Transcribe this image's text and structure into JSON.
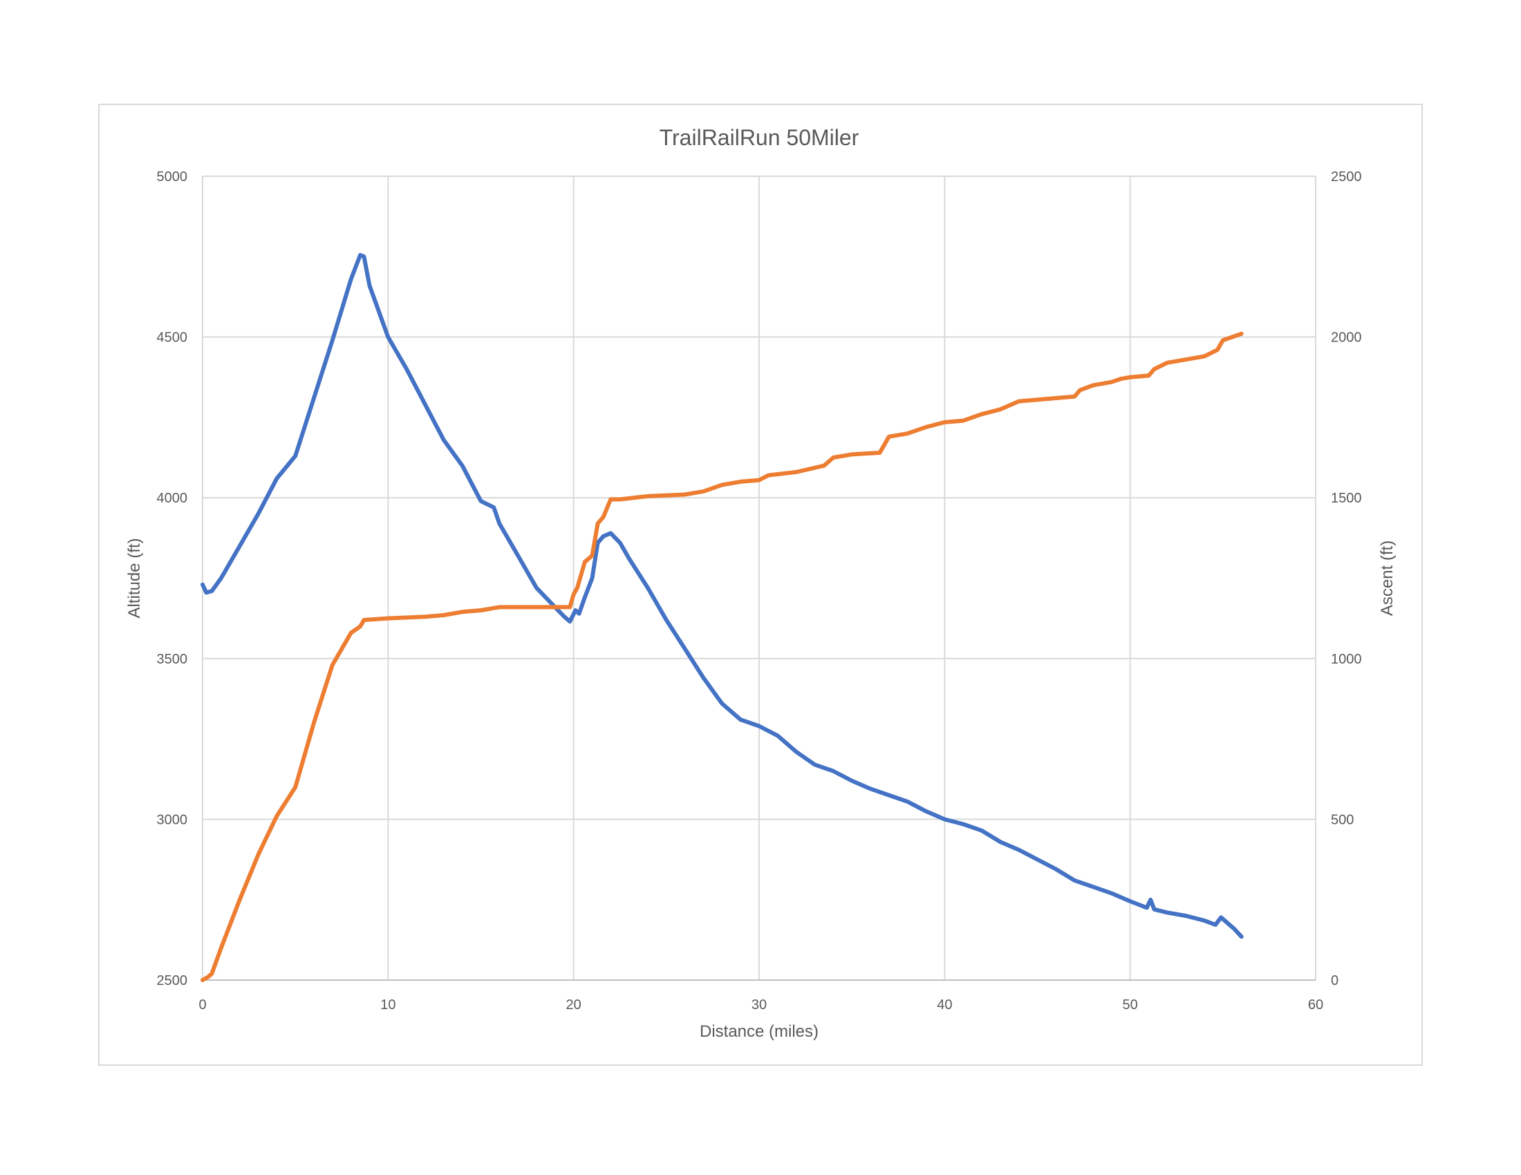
{
  "chart_data": {
    "type": "line",
    "title": "TrailRailRun 50Miler",
    "xlabel": "Distance (miles)",
    "ylabel": "Altitude (ft)",
    "y2label": "Ascent (ft)",
    "xlim": [
      0,
      60
    ],
    "ylim": [
      2500,
      5000
    ],
    "y2lim": [
      0,
      2500
    ],
    "x_ticks": [
      "0",
      "10",
      "20",
      "30",
      "40",
      "50",
      "60"
    ],
    "y_ticks": [
      "2500",
      "3000",
      "3500",
      "4000",
      "4500",
      "5000"
    ],
    "y2_ticks": [
      "0",
      "500",
      "1000",
      "1500",
      "2000",
      "2500"
    ],
    "grid": true,
    "legend": "none",
    "series": [
      {
        "axis": "left",
        "color": "#4472c4",
        "x": [
          0,
          0.2,
          0.5,
          1,
          2,
          3,
          4,
          5,
          6,
          7,
          8,
          8.5,
          8.7,
          9,
          10,
          11,
          12,
          13,
          14,
          15,
          15.7,
          16,
          17,
          18,
          19,
          19.5,
          19.8,
          20.1,
          20.3,
          20.6,
          21,
          21.3,
          21.6,
          22,
          22.5,
          23,
          24,
          25,
          26,
          27,
          28,
          29,
          30,
          31,
          32,
          33,
          34,
          35,
          36,
          37,
          38,
          39,
          40,
          41,
          42,
          43,
          44,
          45,
          46,
          47,
          48,
          49,
          50,
          50.9,
          51.1,
          51.3,
          52,
          53,
          54,
          54.6,
          54.9,
          55.2,
          55.6,
          56
        ],
        "y": [
          3730,
          3705,
          3710,
          3750,
          3850,
          3950,
          4060,
          4130,
          4310,
          4490,
          4680,
          4755,
          4750,
          4660,
          4500,
          4400,
          4290,
          4180,
          4100,
          3990,
          3970,
          3920,
          3820,
          3720,
          3660,
          3630,
          3615,
          3650,
          3640,
          3690,
          3750,
          3860,
          3880,
          3890,
          3860,
          3810,
          3720,
          3620,
          3530,
          3440,
          3360,
          3310,
          3290,
          3260,
          3210,
          3170,
          3150,
          3120,
          3095,
          3075,
          3055,
          3025,
          3000,
          2985,
          2965,
          2930,
          2905,
          2875,
          2845,
          2810,
          2790,
          2770,
          2745,
          2725,
          2750,
          2720,
          2710,
          2700,
          2685,
          2672,
          2695,
          2680,
          2660,
          2635
        ]
      },
      {
        "axis": "right",
        "color": "#ed7d31",
        "x": [
          0,
          0.3,
          0.5,
          1,
          2,
          3,
          4,
          5,
          6,
          7,
          8,
          8.5,
          8.7,
          10,
          12,
          13,
          14,
          15,
          16,
          18,
          19.8,
          20,
          20.2,
          20.6,
          21,
          21.3,
          21.6,
          22,
          22.5,
          24,
          26,
          27,
          28,
          29,
          30,
          30.5,
          32,
          33.5,
          34,
          35,
          36.5,
          37,
          38,
          39,
          40,
          41,
          42,
          43,
          44,
          46,
          47,
          47.3,
          48,
          49,
          49.5,
          50,
          51,
          51.3,
          52,
          53,
          54,
          54.7,
          55,
          56
        ],
        "y": [
          0,
          10,
          20,
          100,
          250,
          390,
          510,
          600,
          800,
          980,
          1080,
          1100,
          1120,
          1125,
          1130,
          1135,
          1145,
          1150,
          1160,
          1160,
          1160,
          1200,
          1220,
          1300,
          1320,
          1420,
          1440,
          1495,
          1495,
          1505,
          1510,
          1520,
          1540,
          1550,
          1555,
          1570,
          1580,
          1600,
          1625,
          1635,
          1640,
          1690,
          1700,
          1720,
          1735,
          1740,
          1760,
          1775,
          1800,
          1810,
          1815,
          1835,
          1850,
          1860,
          1870,
          1875,
          1880,
          1900,
          1920,
          1930,
          1940,
          1960,
          1990,
          2010
        ]
      }
    ]
  }
}
